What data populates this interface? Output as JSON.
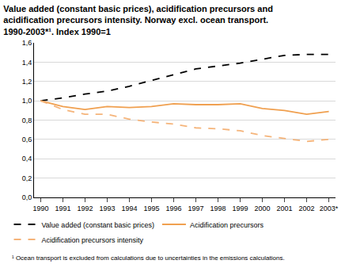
{
  "chart_data": {
    "type": "line",
    "title": "Value added (constant basic prices), acidification precursors and\nacidification precursors intensity. Norway excl. ocean transport.\n1990-2003*¹. Index 1990=1",
    "footnote": "¹ Ocean transport is excluded from calculations due to uncertainties in the emissions calculations.",
    "categories": [
      "1990",
      "1991",
      "1992",
      "1993",
      "1994",
      "1995",
      "1996",
      "1997",
      "1998",
      "1999",
      "2000",
      "2001",
      "2002",
      "2003*"
    ],
    "series": [
      {
        "name": "Value added (constant basic prices)",
        "color": "#000000",
        "line_style": "dash",
        "values": [
          1.0,
          1.03,
          1.07,
          1.1,
          1.15,
          1.21,
          1.27,
          1.33,
          1.36,
          1.39,
          1.43,
          1.47,
          1.48,
          1.48
        ]
      },
      {
        "name": "Acidification precursors",
        "color": "#f0a050",
        "line_style": "solid",
        "values": [
          1.0,
          0.94,
          0.91,
          0.94,
          0.93,
          0.94,
          0.97,
          0.96,
          0.96,
          0.97,
          0.92,
          0.9,
          0.86,
          0.89
        ]
      },
      {
        "name": "Acidification precursors intensity",
        "color": "#f5b47a",
        "line_style": "dash",
        "values": [
          1.0,
          0.91,
          0.86,
          0.86,
          0.81,
          0.78,
          0.76,
          0.72,
          0.71,
          0.69,
          0.64,
          0.61,
          0.58,
          0.6
        ]
      }
    ],
    "ylim": [
      0,
      1.6
    ],
    "yticks": [
      {
        "value": 0,
        "label": "0,0"
      },
      {
        "value": 0.2,
        "label": "0,2"
      },
      {
        "value": 0.4,
        "label": "0,4"
      },
      {
        "value": 0.6,
        "label": "0,6"
      },
      {
        "value": 0.8,
        "label": "0,8"
      },
      {
        "value": 1.0,
        "label": "1,0"
      },
      {
        "value": 1.2,
        "label": "1,2"
      },
      {
        "value": 1.4,
        "label": "1,4"
      },
      {
        "value": 1.6,
        "label": "1,6"
      }
    ],
    "grid": true,
    "legend": "bottom"
  }
}
